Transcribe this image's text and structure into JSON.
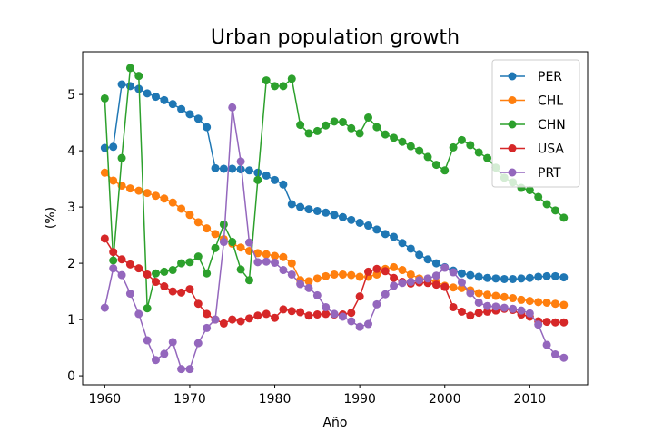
{
  "chart_data": {
    "type": "line",
    "title": "Urban population growth",
    "xlabel": "Año",
    "ylabel": "(%)",
    "x": [
      1960,
      1961,
      1962,
      1963,
      1964,
      1965,
      1966,
      1967,
      1968,
      1969,
      1970,
      1971,
      1972,
      1973,
      1974,
      1975,
      1976,
      1977,
      1978,
      1979,
      1980,
      1981,
      1982,
      1983,
      1984,
      1985,
      1986,
      1987,
      1988,
      1989,
      1990,
      1991,
      1992,
      1993,
      1994,
      1995,
      1996,
      1997,
      1998,
      1999,
      2000,
      2001,
      2002,
      2003,
      2004,
      2005,
      2006,
      2007,
      2008,
      2009,
      2010,
      2011,
      2012,
      2013,
      2014
    ],
    "series": [
      {
        "name": "PER",
        "color": "#1f77b4",
        "values": [
          4.05,
          4.07,
          5.18,
          5.15,
          5.1,
          5.02,
          4.96,
          4.9,
          4.83,
          4.74,
          4.65,
          4.57,
          4.42,
          3.69,
          3.68,
          3.68,
          3.67,
          3.65,
          3.61,
          3.56,
          3.48,
          3.4,
          3.05,
          3.0,
          2.96,
          2.93,
          2.9,
          2.86,
          2.82,
          2.77,
          2.72,
          2.67,
          2.6,
          2.52,
          2.47,
          2.36,
          2.26,
          2.15,
          2.07,
          2.0,
          1.93,
          1.87,
          1.82,
          1.79,
          1.76,
          1.74,
          1.73,
          1.72,
          1.72,
          1.73,
          1.74,
          1.76,
          1.77,
          1.77,
          1.75
        ]
      },
      {
        "name": "CHL",
        "color": "#ff7f0e",
        "values": [
          3.61,
          3.47,
          3.38,
          3.33,
          3.29,
          3.25,
          3.2,
          3.15,
          3.08,
          2.97,
          2.86,
          2.73,
          2.62,
          2.52,
          2.43,
          2.35,
          2.28,
          2.22,
          2.18,
          2.16,
          2.13,
          2.11,
          2.0,
          1.7,
          1.68,
          1.73,
          1.77,
          1.8,
          1.8,
          1.79,
          1.76,
          1.76,
          1.8,
          1.9,
          1.93,
          1.88,
          1.8,
          1.73,
          1.71,
          1.67,
          1.6,
          1.57,
          1.56,
          1.52,
          1.47,
          1.44,
          1.42,
          1.4,
          1.38,
          1.35,
          1.33,
          1.31,
          1.3,
          1.28,
          1.26
        ]
      },
      {
        "name": "CHN",
        "color": "#2ca02c",
        "values": [
          4.93,
          2.05,
          3.87,
          5.47,
          5.33,
          1.2,
          1.82,
          1.85,
          1.88,
          2.0,
          2.02,
          2.12,
          1.82,
          2.27,
          2.69,
          2.38,
          1.89,
          1.7,
          3.48,
          5.25,
          5.15,
          5.15,
          5.28,
          4.46,
          4.31,
          4.35,
          4.45,
          4.52,
          4.51,
          4.4,
          4.31,
          4.59,
          4.42,
          4.29,
          4.23,
          4.16,
          4.08,
          4.0,
          3.89,
          3.75,
          3.65,
          4.06,
          4.19,
          4.1,
          3.97,
          3.87,
          3.7,
          3.52,
          3.44,
          3.34,
          3.3,
          3.18,
          3.05,
          2.94,
          2.81
        ]
      },
      {
        "name": "USA",
        "color": "#d62728",
        "values": [
          2.44,
          2.2,
          2.07,
          1.98,
          1.91,
          1.8,
          1.67,
          1.59,
          1.5,
          1.48,
          1.54,
          1.28,
          1.1,
          1.0,
          0.93,
          1.0,
          0.97,
          1.02,
          1.07,
          1.1,
          1.03,
          1.18,
          1.15,
          1.13,
          1.07,
          1.09,
          1.1,
          1.09,
          1.09,
          1.12,
          1.41,
          1.85,
          1.9,
          1.86,
          1.74,
          1.67,
          1.64,
          1.66,
          1.65,
          1.62,
          1.58,
          1.22,
          1.14,
          1.07,
          1.12,
          1.14,
          1.16,
          1.19,
          1.17,
          1.09,
          1.05,
          0.97,
          0.96,
          0.95,
          0.95
        ]
      },
      {
        "name": "PRT",
        "color": "#9467bd",
        "values": [
          1.21,
          1.91,
          1.79,
          1.46,
          1.1,
          0.63,
          0.28,
          0.39,
          0.6,
          0.12,
          0.12,
          0.58,
          0.85,
          1.0,
          2.38,
          4.77,
          3.81,
          2.37,
          2.02,
          2.03,
          2.01,
          1.88,
          1.8,
          1.63,
          1.56,
          1.43,
          1.22,
          1.1,
          1.05,
          0.97,
          0.87,
          0.92,
          1.27,
          1.45,
          1.6,
          1.65,
          1.67,
          1.7,
          1.73,
          1.78,
          1.92,
          1.84,
          1.66,
          1.47,
          1.3,
          1.24,
          1.23,
          1.21,
          1.19,
          1.16,
          1.11,
          0.91,
          0.55,
          0.38,
          0.32
        ]
      }
    ],
    "xlim": [
      1957.4,
      2016.8
    ],
    "ylim": [
      -0.16,
      5.76
    ],
    "xticks": [
      1960,
      1970,
      1980,
      1990,
      2000,
      2010
    ],
    "yticks": [
      0,
      1,
      2,
      3,
      4,
      5
    ],
    "legend": "upper right"
  }
}
